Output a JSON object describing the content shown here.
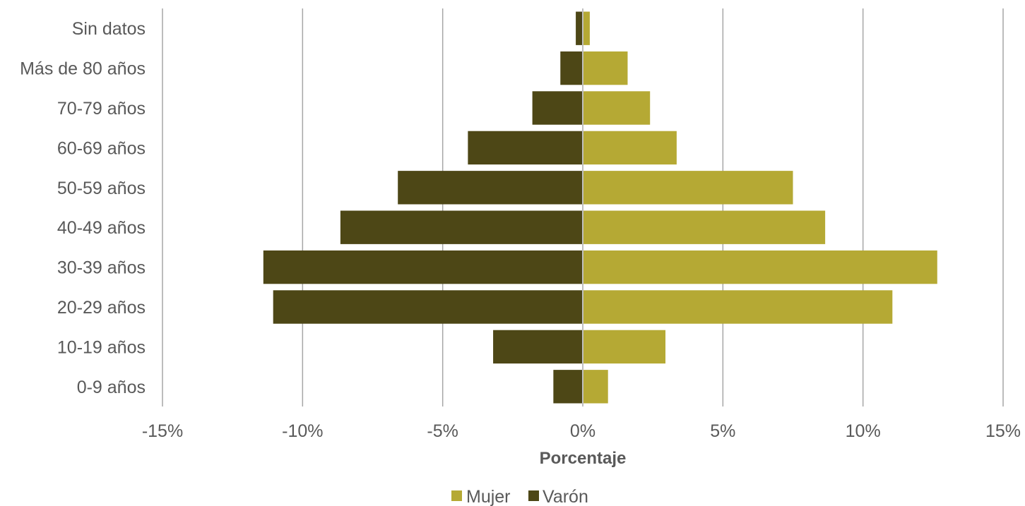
{
  "chart_data": {
    "type": "bar",
    "orientation": "horizontal",
    "categories": [
      "0-9 años",
      "10-19 años",
      "20-29 años",
      "30-39 años",
      "40-49 años",
      "50-59 años",
      "60-69 años",
      "70-79 años",
      "Más de 80 años",
      "Sin datos"
    ],
    "series": [
      {
        "name": "Mujer",
        "color": "#b5a934",
        "values": [
          0.9,
          2.95,
          11.05,
          12.65,
          8.65,
          7.5,
          3.35,
          2.4,
          1.6,
          0.25
        ]
      },
      {
        "name": "Varón",
        "color": "#4d4716",
        "values": [
          -1.05,
          -3.2,
          -11.05,
          -11.4,
          -8.65,
          -6.6,
          -4.1,
          -1.8,
          -0.8,
          -0.25
        ]
      }
    ],
    "xlabel": "Porcentaje",
    "ylabel": "",
    "xlim": [
      -15,
      15
    ],
    "xticks": [
      -15,
      -10,
      -5,
      0,
      5,
      10,
      15
    ],
    "xtick_labels": [
      "-15%",
      "-10%",
      "-5%",
      "0%",
      "5%",
      "10%",
      "15%"
    ],
    "grid": "vertical",
    "legend_position": "bottom"
  }
}
